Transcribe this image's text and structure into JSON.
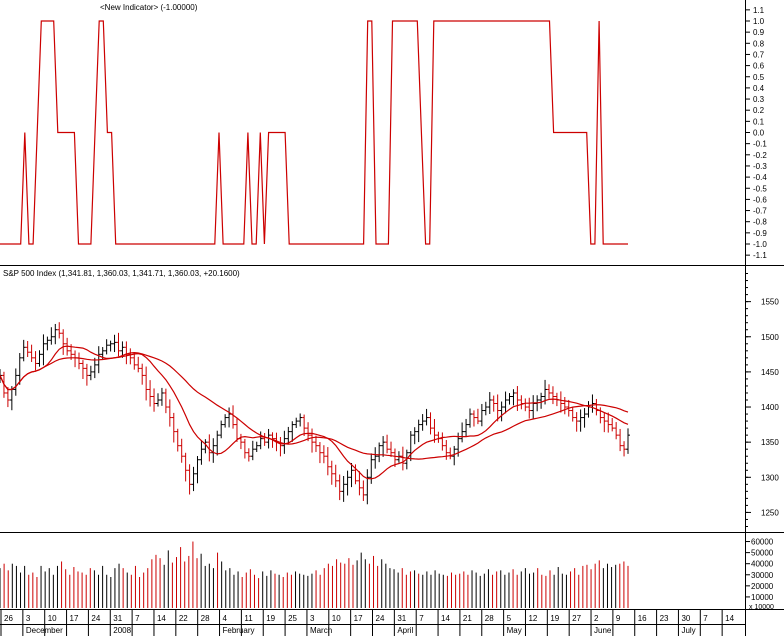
{
  "indicator_pane": {
    "title": "<New Indicator> (-1.00000)",
    "y_ticks": [
      "1.1",
      "1.0",
      "0.9",
      "0.8",
      "0.7",
      "0.6",
      "0.5",
      "0.4",
      "0.3",
      "0.2",
      "0.1",
      "0.0",
      "-0.1",
      "-0.2",
      "-0.3",
      "-0.4",
      "-0.5",
      "-0.6",
      "-0.7",
      "-0.8",
      "-0.9",
      "-1.0",
      "-1.1"
    ]
  },
  "price_pane": {
    "title": "S&P 500 Index (1,341.81, 1,360.03, 1,341.71, 1,360.03, +20.1600)",
    "y_ticks": [
      "1550",
      "1500",
      "1450",
      "1400",
      "1350",
      "1300",
      "1250"
    ]
  },
  "volume_pane": {
    "y_ticks": [
      "60000",
      "50000",
      "40000",
      "30000",
      "20000",
      "10000"
    ],
    "scale_note": "x 10000"
  },
  "x_axis": {
    "date_labels": [
      "26",
      "3",
      "10",
      "17",
      "24",
      "31",
      "7",
      "14",
      "22",
      "28",
      "4",
      "11",
      "19",
      "25",
      "3",
      "10",
      "17",
      "24",
      "31",
      "7",
      "14",
      "21",
      "28",
      "5",
      "12",
      "19",
      "27",
      "2",
      "9",
      "16",
      "23",
      "30",
      "7",
      "14"
    ],
    "month_labels": [
      "December",
      "2008",
      "February",
      "March",
      "April",
      "May",
      "June",
      "July"
    ]
  },
  "colors": {
    "indicator_line": "#cc0000",
    "bar_up": "#000000",
    "bar_down": "#cc0000",
    "ma_line": "#cc0000",
    "grid": "#000000",
    "background": "#ffffff"
  },
  "chart_data": [
    {
      "type": "line",
      "title": "<New Indicator> (-1.00000)",
      "ylim": [
        -1.1,
        1.1
      ],
      "series": [
        {
          "name": "<New Indicator>",
          "values": [
            -1,
            -1,
            -1,
            -1,
            -1,
            -1,
            0,
            -1,
            -1,
            0,
            1,
            1,
            1,
            1,
            0,
            0,
            0,
            0,
            0,
            -1,
            -1,
            -1,
            -1,
            0,
            1,
            1,
            0,
            0,
            -1,
            -1,
            -1,
            -1,
            -1,
            -1,
            -1,
            -1,
            -1,
            -1,
            -1,
            -1,
            -1,
            -1,
            -1,
            -1,
            -1,
            -1,
            -1,
            -1,
            -1,
            -1,
            -1,
            -1,
            -1,
            0,
            -1,
            -1,
            -1,
            -1,
            -1,
            -1,
            0,
            -1,
            -1,
            0,
            -1,
            0,
            0,
            0,
            0,
            0,
            -1,
            -1,
            -1,
            -1,
            -1,
            -1,
            -1,
            -1,
            -1,
            -1,
            -1,
            -1,
            -1,
            -1,
            -1,
            -1,
            -1,
            -1,
            -1,
            1,
            1,
            -1,
            -1,
            -1,
            -1,
            1,
            1,
            1,
            1,
            1,
            1,
            1,
            0,
            -1,
            -1,
            1,
            1,
            1,
            1,
            1,
            1,
            1,
            1,
            1,
            1,
            1,
            1,
            1,
            1,
            1,
            1,
            1,
            1,
            1,
            1,
            1,
            1,
            1,
            1,
            1,
            1,
            1,
            1,
            1,
            0,
            0,
            0,
            0,
            0,
            0,
            0,
            0,
            0,
            -1,
            -1,
            1,
            -1,
            -1,
            -1,
            -1,
            -1,
            -1,
            -1
          ]
        }
      ]
    },
    {
      "type": "ohlc",
      "title": "S&P 500 Index",
      "ylim": [
        1225,
        1595
      ],
      "last_values": {
        "open": 1341.81,
        "high": 1360.03,
        "low": 1341.71,
        "close": 1360.03,
        "change": 20.16
      },
      "close": [
        1445,
        1420,
        1410,
        1425,
        1445,
        1470,
        1485,
        1478,
        1470,
        1462,
        1475,
        1490,
        1495,
        1500,
        1510,
        1505,
        1490,
        1480,
        1475,
        1470,
        1462,
        1455,
        1445,
        1450,
        1460,
        1475,
        1480,
        1488,
        1490,
        1492,
        1480,
        1485,
        1475,
        1470,
        1460,
        1455,
        1445,
        1425,
        1415,
        1405,
        1410,
        1420,
        1400,
        1385,
        1365,
        1345,
        1330,
        1310,
        1290,
        1305,
        1325,
        1340,
        1350,
        1335,
        1345,
        1360,
        1375,
        1385,
        1390,
        1375,
        1355,
        1350,
        1335,
        1330,
        1340,
        1345,
        1355,
        1350,
        1360,
        1355,
        1350,
        1345,
        1355,
        1365,
        1375,
        1380,
        1385,
        1370,
        1360,
        1350,
        1345,
        1335,
        1330,
        1315,
        1305,
        1295,
        1280,
        1290,
        1300,
        1310,
        1295,
        1285,
        1275,
        1300,
        1325,
        1330,
        1345,
        1350,
        1340,
        1335,
        1325,
        1330,
        1320,
        1335,
        1360,
        1365,
        1375,
        1380,
        1385,
        1370,
        1360,
        1355,
        1345,
        1335,
        1330,
        1340,
        1355,
        1365,
        1375,
        1390,
        1385,
        1380,
        1395,
        1400,
        1410,
        1405,
        1395,
        1400,
        1410,
        1415,
        1420,
        1410,
        1405,
        1400,
        1395,
        1405,
        1410,
        1415,
        1425,
        1420,
        1415,
        1410,
        1405,
        1400,
        1395,
        1385,
        1380,
        1385,
        1390,
        1400,
        1405,
        1395,
        1385,
        1380,
        1375,
        1370,
        1360,
        1345,
        1340,
        1360
      ]
    },
    {
      "type": "bar",
      "title": "Volume",
      "ylim": [
        0,
        65000
      ],
      "values": [
        36000,
        40000,
        34000,
        40000,
        38000,
        32000,
        38000,
        30000,
        32000,
        28000,
        38000,
        33000,
        36000,
        30000,
        38000,
        42000,
        35000,
        30000,
        37000,
        33000,
        32000,
        30000,
        36000,
        34000,
        30000,
        38000,
        30000,
        28000,
        36000,
        40000,
        36000,
        32000,
        30000,
        38000,
        28000,
        32000,
        36000,
        44000,
        48000,
        45000,
        39000,
        52000,
        41000,
        46000,
        55000,
        42000,
        47000,
        60000,
        45000,
        49000,
        38000,
        40000,
        36000,
        50000,
        42000,
        34000,
        36000,
        30000,
        33000,
        28000,
        32000,
        35000,
        30000,
        27000,
        33000,
        29000,
        34000,
        31000,
        30000,
        28000,
        32000,
        30000,
        33000,
        31000,
        30000,
        29000,
        31000,
        34000,
        30000,
        36000,
        40000,
        38000,
        44000,
        41000,
        40000,
        45000,
        39000,
        43000,
        50000,
        44000,
        40000,
        47000,
        38000,
        44000,
        40000,
        36000,
        35000,
        32000,
        36000,
        30000,
        33000,
        34000,
        31000,
        30000,
        33000,
        30000,
        34000,
        31000,
        30000,
        29000,
        32000,
        30000,
        31000,
        33000,
        30000,
        34000,
        32000,
        29000,
        31000,
        35000,
        30000,
        33000,
        34000,
        30000,
        32000,
        35000,
        30000,
        33000,
        36000,
        31000,
        32000,
        36000,
        30000,
        29000,
        34000,
        30000,
        37000,
        31000,
        30000,
        33000,
        36000,
        30000,
        38000,
        39000,
        35000,
        40000,
        43000,
        36000,
        40000,
        37000,
        39000,
        40000,
        42000,
        38000
      ]
    }
  ]
}
